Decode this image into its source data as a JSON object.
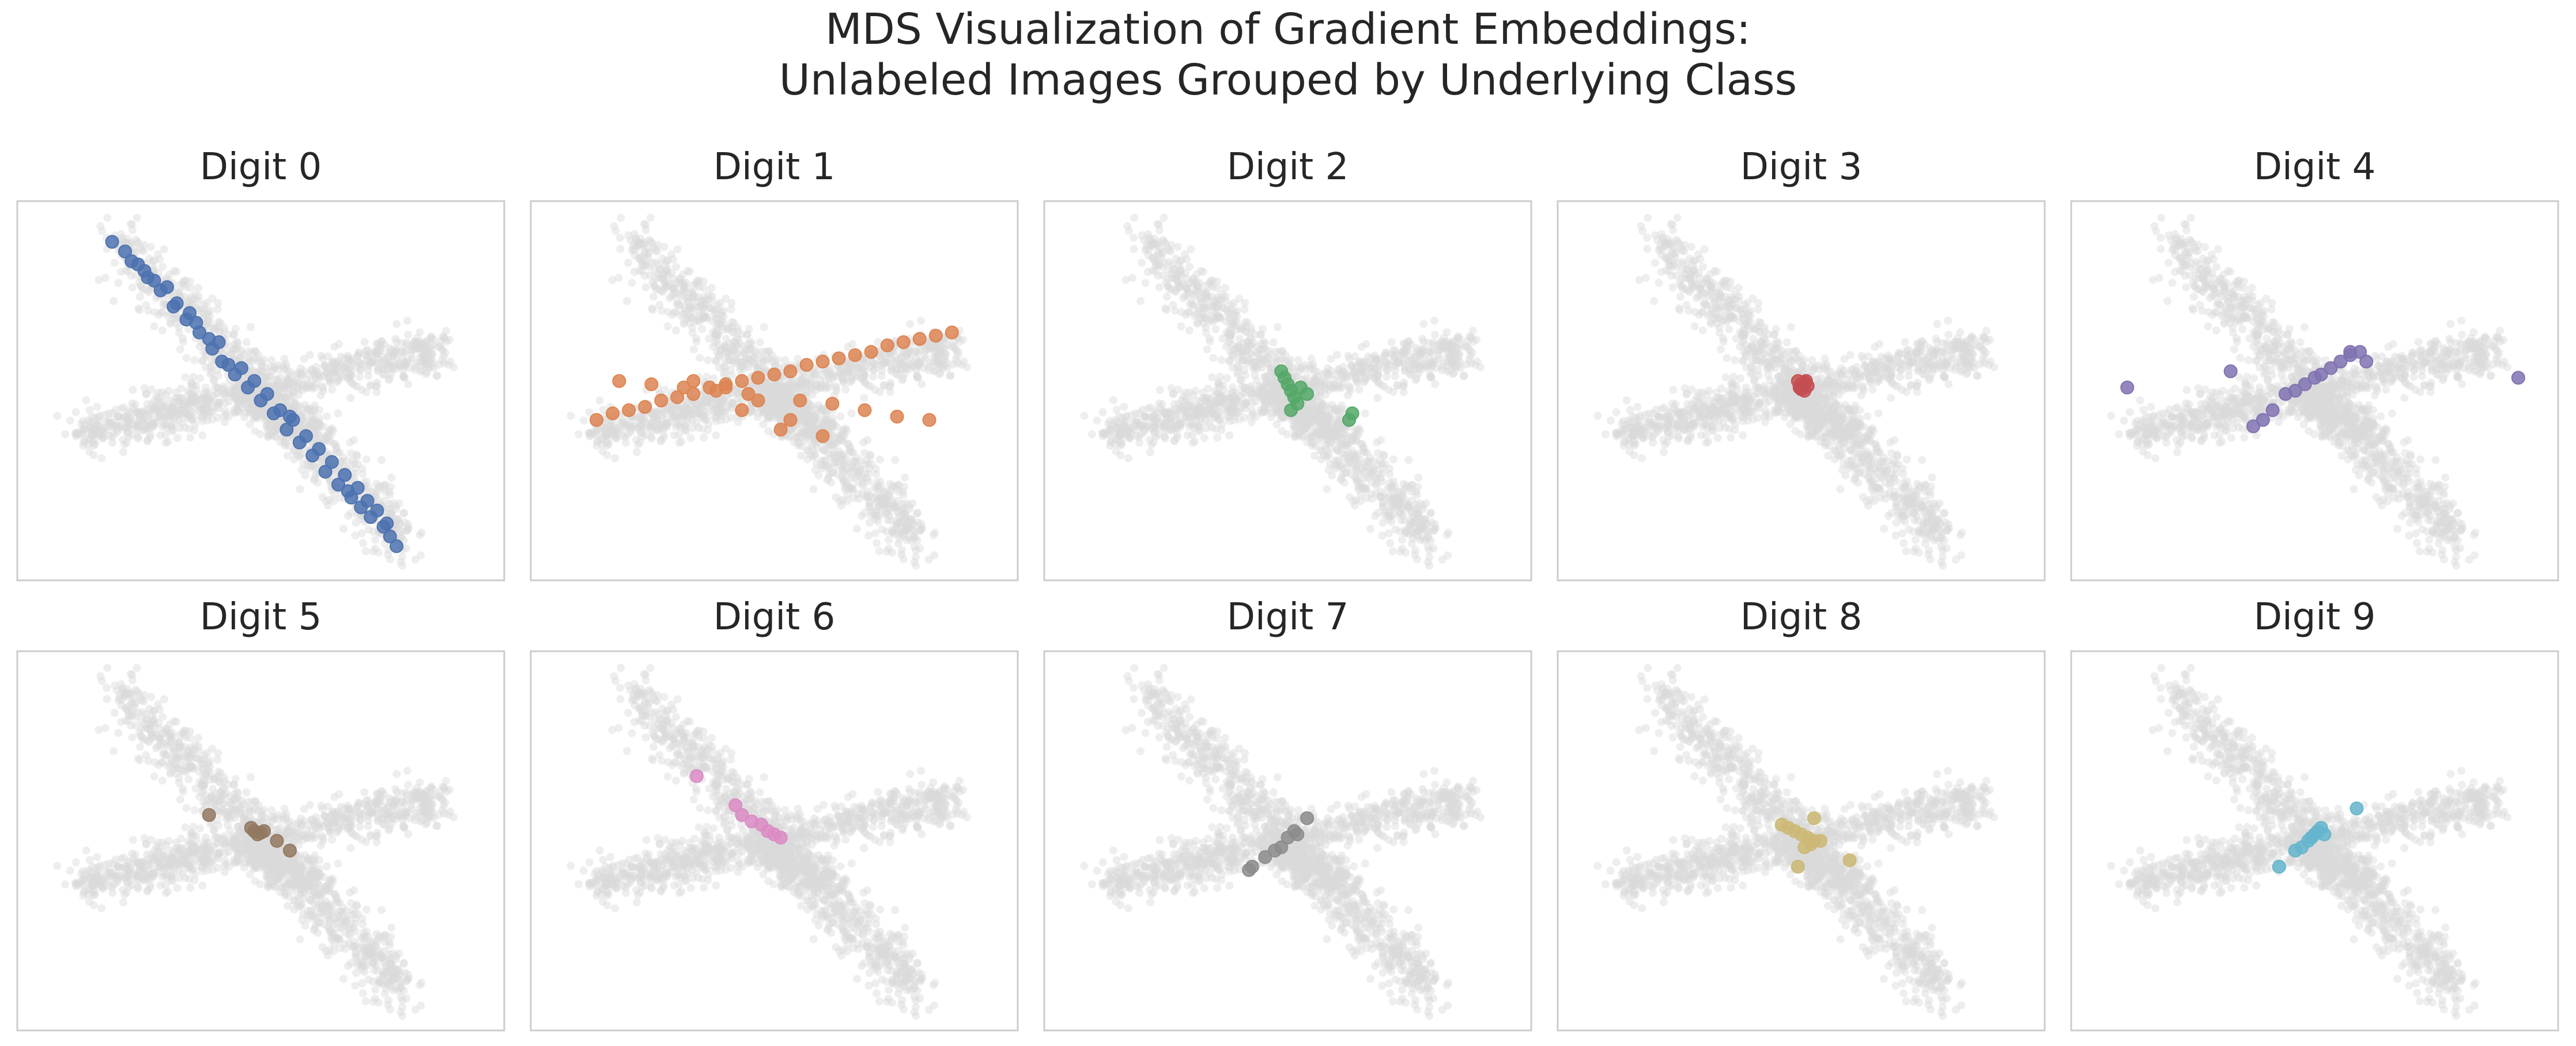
{
  "title_line1": "MDS Visualization of Gradient Embeddings:",
  "title_line2": "Unlabeled Images Grouped by Underlying Class",
  "colors": {
    "background_points": "#d9d9d9",
    "frame": "#cccccc",
    "text": "#262626"
  },
  "chart_data": {
    "type": "scatter",
    "layout": "small multiples, 2 rows x 5 columns",
    "grid": false,
    "ticks": "none",
    "background_overlay": "all embeddings shown in light gray in every panel",
    "panels": [
      {
        "title": "Digit 0",
        "color": "#4c72b0",
        "x": [
          -4.6,
          -4.2,
          -3.8,
          -3.5,
          -3.1,
          -2.7,
          -2.3,
          -1.9,
          -1.5,
          -1.2,
          -0.8,
          -0.4,
          0.0,
          0.4,
          0.8,
          1.2,
          1.6,
          2.0,
          2.4,
          2.8,
          3.1,
          3.4,
          3.8,
          4.0,
          4.2,
          -4.0,
          -3.3,
          -2.6,
          -2.0,
          -1.3,
          -0.6,
          0.2,
          1.0,
          1.8,
          2.6,
          3.3,
          3.9,
          -3.6,
          -2.9,
          -1.6,
          -0.2,
          0.6,
          1.4,
          2.2,
          3.0,
          3.6,
          -1.0,
          0.9,
          -2.2,
          2.7
        ],
        "y": [
          4.6,
          4.3,
          3.9,
          3.5,
          3.1,
          2.6,
          2.2,
          1.8,
          1.3,
          0.9,
          0.5,
          0.1,
          -0.3,
          -0.7,
          -1.2,
          -1.6,
          -2.0,
          -2.5,
          -2.9,
          -3.3,
          -3.6,
          -3.9,
          -4.2,
          -4.5,
          -4.8,
          4.0,
          3.4,
          2.7,
          2.1,
          1.5,
          0.7,
          -0.1,
          -0.9,
          -1.8,
          -2.6,
          -3.4,
          -4.1,
          3.7,
          3.2,
          1.6,
          0.3,
          -0.6,
          -1.4,
          -2.2,
          -3.0,
          -3.7,
          0.8,
          -0.8,
          2.4,
          -3.1
        ]
      },
      {
        "title": "Digit 1",
        "color": "#dd8452",
        "x": [
          -5.5,
          -5.0,
          -4.5,
          -4.0,
          -3.5,
          -3.0,
          -2.5,
          -2.0,
          -1.5,
          -1.0,
          -0.5,
          0.0,
          0.5,
          1.0,
          1.5,
          2.0,
          2.5,
          3.0,
          3.5,
          4.0,
          4.5,
          5.0,
          5.5,
          -4.8,
          -3.8,
          -2.8,
          -1.8,
          -0.8,
          0.8,
          1.8,
          2.8,
          3.8,
          4.8,
          -2.5,
          -1.5,
          -0.5,
          0.5,
          1.5,
          -1.0,
          0.2
        ],
        "y": [
          -0.9,
          -0.7,
          -0.6,
          -0.5,
          -0.3,
          -0.2,
          -0.1,
          0.1,
          0.2,
          0.3,
          0.4,
          0.5,
          0.6,
          0.8,
          0.9,
          1.0,
          1.1,
          1.2,
          1.4,
          1.5,
          1.6,
          1.7,
          1.8,
          0.3,
          0.2,
          0.1,
          0.0,
          -0.1,
          -0.3,
          -0.4,
          -0.6,
          -0.8,
          -0.9,
          0.3,
          0.1,
          -0.3,
          -0.9,
          -1.4,
          -0.6,
          -1.2
        ]
      },
      {
        "title": "Digit 2",
        "color": "#55a868",
        "x": [
          -0.2,
          -0.1,
          0.0,
          0.1,
          0.2,
          0.3,
          0.1,
          0.4,
          0.6,
          1.9,
          2.0
        ],
        "y": [
          0.6,
          0.4,
          0.2,
          0.0,
          -0.2,
          -0.4,
          -0.6,
          0.1,
          -0.1,
          -0.9,
          -0.7
        ]
      },
      {
        "title": "Digit 3",
        "color": "#c44e52",
        "x": [
          -0.1,
          0.0,
          0.1,
          0.2,
          0.0,
          0.1,
          -0.05,
          0.15
        ],
        "y": [
          0.3,
          0.2,
          0.25,
          0.15,
          0.05,
          0.0,
          0.1,
          0.3
        ]
      },
      {
        "title": "Digit 4",
        "color": "#8172b2",
        "x": [
          -5.8,
          -2.6,
          -1.9,
          -1.6,
          -1.3,
          -0.9,
          -0.6,
          -0.3,
          0.0,
          0.2,
          0.5,
          0.8,
          1.1,
          1.4,
          1.6,
          1.1,
          6.3
        ],
        "y": [
          0.1,
          0.6,
          -1.1,
          -0.9,
          -0.6,
          -0.1,
          0.0,
          0.2,
          0.4,
          0.5,
          0.7,
          0.9,
          1.1,
          1.2,
          0.9,
          1.2,
          0.4
        ]
      },
      {
        "title": "Digit 5",
        "color": "#937860",
        "x": [
          -1.6,
          -0.3,
          -0.2,
          -0.1,
          0.0,
          0.1,
          0.5,
          0.9
        ],
        "y": [
          0.8,
          0.4,
          0.3,
          0.2,
          0.25,
          0.3,
          0.0,
          -0.3
        ]
      },
      {
        "title": "Digit 6",
        "color": "#da8bc3",
        "x": [
          -2.4,
          -1.2,
          -1.0,
          -0.7,
          -0.4,
          -0.2,
          0.0,
          0.2
        ],
        "y": [
          2.0,
          1.1,
          0.8,
          0.6,
          0.5,
          0.3,
          0.2,
          0.1
        ]
      },
      {
        "title": "Digit 7",
        "color": "#8c8c8c",
        "x": [
          -1.2,
          -1.1,
          -0.7,
          -0.4,
          -0.2,
          0.0,
          0.2,
          0.3,
          0.6
        ],
        "y": [
          -0.9,
          -0.8,
          -0.5,
          -0.3,
          -0.2,
          0.1,
          0.3,
          0.2,
          0.7
        ]
      },
      {
        "title": "Digit 8",
        "color": "#ccb974",
        "x": [
          -0.6,
          -0.4,
          -0.2,
          0.0,
          0.2,
          0.4,
          0.6,
          0.1,
          0.4,
          1.5,
          -0.1,
          0.3
        ],
        "y": [
          0.5,
          0.4,
          0.3,
          0.2,
          0.1,
          0.0,
          0.0,
          -0.2,
          0.7,
          -0.6,
          -0.8,
          -0.1
        ]
      },
      {
        "title": "Digit 9",
        "color": "#64b5cd",
        "x": [
          -1.1,
          -0.6,
          -0.4,
          -0.2,
          0.0,
          0.1,
          0.2,
          0.3,
          -0.1,
          1.3
        ],
        "y": [
          -0.8,
          -0.3,
          -0.2,
          0.0,
          0.2,
          0.3,
          0.4,
          0.2,
          0.1,
          1.0
        ]
      }
    ]
  }
}
